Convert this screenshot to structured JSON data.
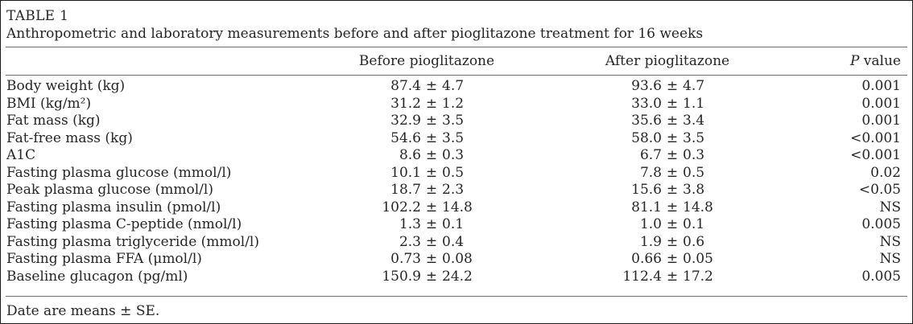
{
  "symbols": {
    "pm": "±"
  },
  "colors": {
    "text": "#262626",
    "rule": "#6e6e6e",
    "border": "#1a1a1a",
    "background": "#ffffff"
  },
  "table": {
    "title": "TABLE 1",
    "subtitle": "Anthropometric and laboratory measurements before and after pioglitazone treatment for 16 weeks",
    "footnote": "Date are means ± SE.",
    "columns": {
      "before": "Before pioglitazone",
      "after": "After pioglitazone",
      "p_italic": "P",
      "p_rest": " value"
    },
    "rows": [
      {
        "label": "Body weight (kg)",
        "before_mean": "87.4",
        "before_se": "4.7",
        "after_mean": "93.6",
        "after_se": "4.7",
        "p": "0.001"
      },
      {
        "label": "BMI (kg/m²)",
        "before_mean": "31.2",
        "before_se": "1.2",
        "after_mean": "33.0",
        "after_se": "1.1",
        "p": "0.001"
      },
      {
        "label": "Fat mass (kg)",
        "before_mean": "32.9",
        "before_se": "3.5",
        "after_mean": "35.6",
        "after_se": "3.4",
        "p": "0.001"
      },
      {
        "label": "Fat-free mass (kg)",
        "before_mean": "54.6",
        "before_se": "3.5",
        "after_mean": "58.0",
        "after_se": "3.5",
        "p": "<0.001"
      },
      {
        "label": "A1C",
        "before_mean": "8.6",
        "before_se": "0.3",
        "after_mean": "6.7",
        "after_se": "0.3",
        "p": "<0.001"
      },
      {
        "label": "Fasting plasma glucose (mmol/l)",
        "before_mean": "10.1",
        "before_se": "0.5",
        "after_mean": "7.8",
        "after_se": "0.5",
        "p": "0.02"
      },
      {
        "label": "Peak plasma glucose (mmol/l)",
        "before_mean": "18.7",
        "before_se": "2.3",
        "after_mean": "15.6",
        "after_se": "3.8",
        "p": "<0.05"
      },
      {
        "label": "Fasting plasma insulin (pmol/l)",
        "before_mean": "102.2",
        "before_se": "14.8",
        "after_mean": "81.1",
        "after_se": "14.8",
        "p": "NS"
      },
      {
        "label": "Fasting plasma C-peptide (nmol/l)",
        "before_mean": "1.3",
        "before_se": "0.1",
        "after_mean": "1.0",
        "after_se": "0.1",
        "p": "0.005"
      },
      {
        "label": "Fasting plasma triglyceride (mmol/l)",
        "before_mean": "2.3",
        "before_se": "0.4",
        "after_mean": "1.9",
        "after_se": "0.6",
        "p": "NS"
      },
      {
        "label": "Fasting plasma FFA (μmol/l)",
        "before_mean": "0.73",
        "before_se": "0.08",
        "after_mean": "0.66",
        "after_se": "0.05",
        "p": "NS"
      },
      {
        "label": "Baseline glucagon (pg/ml)",
        "before_mean": "150.9",
        "before_se": "24.2",
        "after_mean": "112.4",
        "after_se": "17.2",
        "p": "0.005"
      }
    ]
  }
}
